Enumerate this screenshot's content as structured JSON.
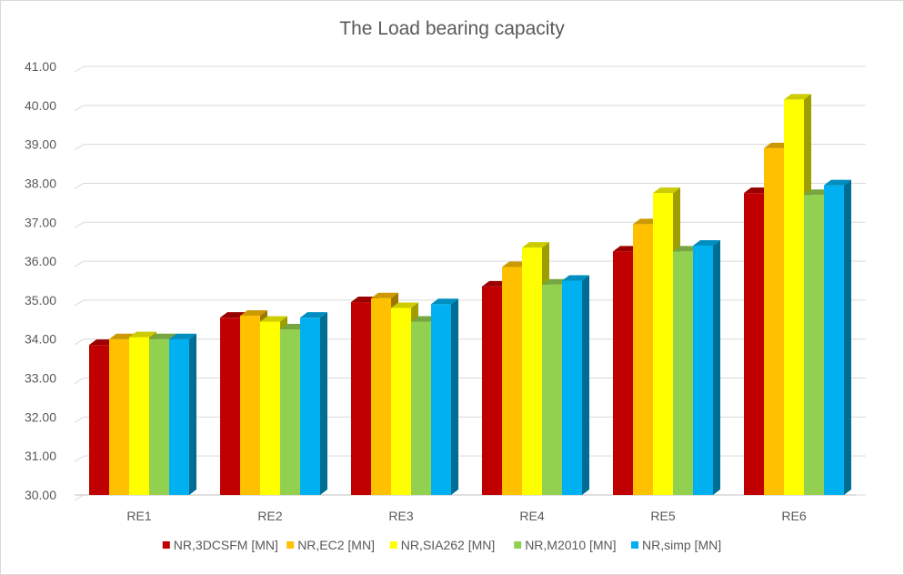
{
  "chart_data": {
    "type": "bar",
    "style": "3d-clustered-column",
    "title": "The Load bearing capacity",
    "xlabel": "",
    "ylabel": "",
    "categories": [
      "RE1",
      "RE2",
      "RE3",
      "RE4",
      "RE5",
      "RE6"
    ],
    "ylim": [
      30.0,
      41.0
    ],
    "ytick_step": 1.0,
    "ytick_labels": [
      "30.00",
      "31.00",
      "32.00",
      "33.00",
      "34.00",
      "35.00",
      "36.00",
      "37.00",
      "38.00",
      "39.00",
      "40.00",
      "41.00"
    ],
    "grid": true,
    "legend_position": "bottom",
    "series": [
      {
        "name": "NR,3DCSFM [MN]",
        "color": "#c00000",
        "values": [
          33.85,
          34.55,
          34.95,
          35.35,
          36.25,
          37.75
        ]
      },
      {
        "name": "NR,EC2 [MN]",
        "color": "#ffc000",
        "values": [
          34.0,
          34.6,
          35.05,
          35.85,
          36.95,
          38.9
        ]
      },
      {
        "name": "NR,SIA262 [MN]",
        "color": "#ffff00",
        "values": [
          34.05,
          34.45,
          34.8,
          36.35,
          37.75,
          40.15
        ]
      },
      {
        "name": "NR,M2010 [MN]",
        "color": "#92d050",
        "values": [
          34.0,
          34.25,
          34.45,
          35.4,
          36.25,
          37.7
        ]
      },
      {
        "name": "NR,simp [MN]",
        "color": "#00b0f0",
        "values": [
          34.0,
          34.55,
          34.9,
          35.5,
          36.4,
          37.95
        ]
      }
    ]
  }
}
